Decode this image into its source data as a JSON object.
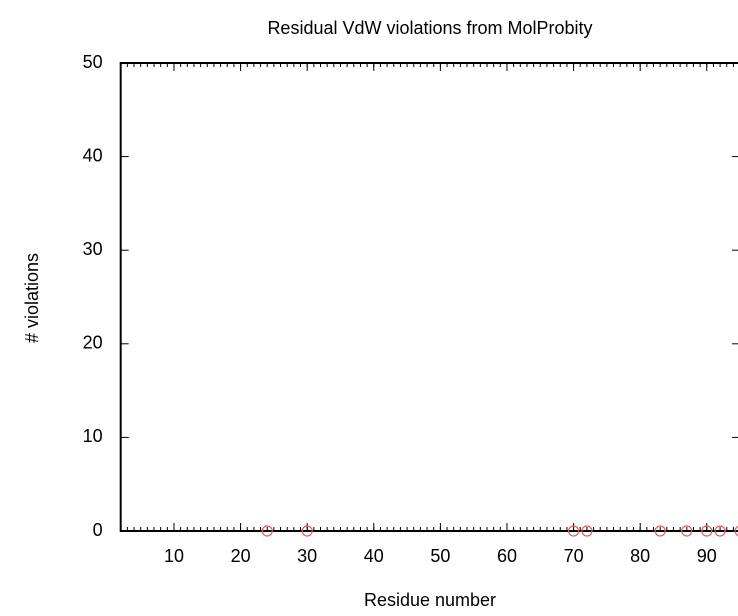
{
  "chart_data": {
    "type": "scatter",
    "title": "Residual VdW violations from MolProbity",
    "xlabel": "Residue number",
    "ylabel": "# violations",
    "x": [
      24,
      30,
      70,
      72,
      83,
      87,
      90,
      92,
      95
    ],
    "values": [
      0,
      0,
      0,
      0,
      0,
      0,
      0,
      0,
      0
    ],
    "color": "#e06060",
    "xlim": [
      2,
      95
    ],
    "ylim": [
      0,
      50
    ],
    "xticks": [
      10,
      20,
      30,
      40,
      50,
      60,
      70,
      80,
      90
    ],
    "yticks": [
      0,
      10,
      20,
      30,
      40,
      50
    ],
    "mxtics": 10,
    "grid": false
  }
}
